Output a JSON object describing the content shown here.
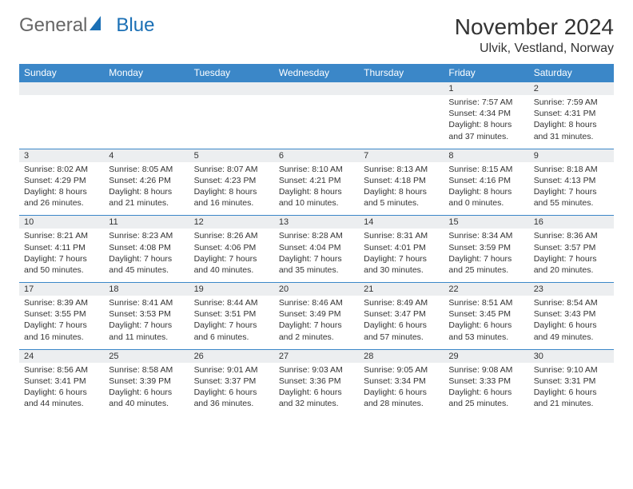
{
  "logo": {
    "text1": "General",
    "text2": "Blue"
  },
  "title": "November 2024",
  "location": "Ulvik, Vestland, Norway",
  "colors": {
    "header_bg": "#3b87c8",
    "header_text": "#ffffff",
    "daynum_bg": "#eceef0",
    "row_border": "#3b87c8",
    "body_text": "#333333",
    "logo_grey": "#666666",
    "logo_blue": "#1a6fb5"
  },
  "weekdays": [
    "Sunday",
    "Monday",
    "Tuesday",
    "Wednesday",
    "Thursday",
    "Friday",
    "Saturday"
  ],
  "weeks": [
    [
      null,
      null,
      null,
      null,
      null,
      {
        "n": "1",
        "sunrise": "Sunrise: 7:57 AM",
        "sunset": "Sunset: 4:34 PM",
        "daylight": "Daylight: 8 hours and 37 minutes."
      },
      {
        "n": "2",
        "sunrise": "Sunrise: 7:59 AM",
        "sunset": "Sunset: 4:31 PM",
        "daylight": "Daylight: 8 hours and 31 minutes."
      }
    ],
    [
      {
        "n": "3",
        "sunrise": "Sunrise: 8:02 AM",
        "sunset": "Sunset: 4:29 PM",
        "daylight": "Daylight: 8 hours and 26 minutes."
      },
      {
        "n": "4",
        "sunrise": "Sunrise: 8:05 AM",
        "sunset": "Sunset: 4:26 PM",
        "daylight": "Daylight: 8 hours and 21 minutes."
      },
      {
        "n": "5",
        "sunrise": "Sunrise: 8:07 AM",
        "sunset": "Sunset: 4:23 PM",
        "daylight": "Daylight: 8 hours and 16 minutes."
      },
      {
        "n": "6",
        "sunrise": "Sunrise: 8:10 AM",
        "sunset": "Sunset: 4:21 PM",
        "daylight": "Daylight: 8 hours and 10 minutes."
      },
      {
        "n": "7",
        "sunrise": "Sunrise: 8:13 AM",
        "sunset": "Sunset: 4:18 PM",
        "daylight": "Daylight: 8 hours and 5 minutes."
      },
      {
        "n": "8",
        "sunrise": "Sunrise: 8:15 AM",
        "sunset": "Sunset: 4:16 PM",
        "daylight": "Daylight: 8 hours and 0 minutes."
      },
      {
        "n": "9",
        "sunrise": "Sunrise: 8:18 AM",
        "sunset": "Sunset: 4:13 PM",
        "daylight": "Daylight: 7 hours and 55 minutes."
      }
    ],
    [
      {
        "n": "10",
        "sunrise": "Sunrise: 8:21 AM",
        "sunset": "Sunset: 4:11 PM",
        "daylight": "Daylight: 7 hours and 50 minutes."
      },
      {
        "n": "11",
        "sunrise": "Sunrise: 8:23 AM",
        "sunset": "Sunset: 4:08 PM",
        "daylight": "Daylight: 7 hours and 45 minutes."
      },
      {
        "n": "12",
        "sunrise": "Sunrise: 8:26 AM",
        "sunset": "Sunset: 4:06 PM",
        "daylight": "Daylight: 7 hours and 40 minutes."
      },
      {
        "n": "13",
        "sunrise": "Sunrise: 8:28 AM",
        "sunset": "Sunset: 4:04 PM",
        "daylight": "Daylight: 7 hours and 35 minutes."
      },
      {
        "n": "14",
        "sunrise": "Sunrise: 8:31 AM",
        "sunset": "Sunset: 4:01 PM",
        "daylight": "Daylight: 7 hours and 30 minutes."
      },
      {
        "n": "15",
        "sunrise": "Sunrise: 8:34 AM",
        "sunset": "Sunset: 3:59 PM",
        "daylight": "Daylight: 7 hours and 25 minutes."
      },
      {
        "n": "16",
        "sunrise": "Sunrise: 8:36 AM",
        "sunset": "Sunset: 3:57 PM",
        "daylight": "Daylight: 7 hours and 20 minutes."
      }
    ],
    [
      {
        "n": "17",
        "sunrise": "Sunrise: 8:39 AM",
        "sunset": "Sunset: 3:55 PM",
        "daylight": "Daylight: 7 hours and 16 minutes."
      },
      {
        "n": "18",
        "sunrise": "Sunrise: 8:41 AM",
        "sunset": "Sunset: 3:53 PM",
        "daylight": "Daylight: 7 hours and 11 minutes."
      },
      {
        "n": "19",
        "sunrise": "Sunrise: 8:44 AM",
        "sunset": "Sunset: 3:51 PM",
        "daylight": "Daylight: 7 hours and 6 minutes."
      },
      {
        "n": "20",
        "sunrise": "Sunrise: 8:46 AM",
        "sunset": "Sunset: 3:49 PM",
        "daylight": "Daylight: 7 hours and 2 minutes."
      },
      {
        "n": "21",
        "sunrise": "Sunrise: 8:49 AM",
        "sunset": "Sunset: 3:47 PM",
        "daylight": "Daylight: 6 hours and 57 minutes."
      },
      {
        "n": "22",
        "sunrise": "Sunrise: 8:51 AM",
        "sunset": "Sunset: 3:45 PM",
        "daylight": "Daylight: 6 hours and 53 minutes."
      },
      {
        "n": "23",
        "sunrise": "Sunrise: 8:54 AM",
        "sunset": "Sunset: 3:43 PM",
        "daylight": "Daylight: 6 hours and 49 minutes."
      }
    ],
    [
      {
        "n": "24",
        "sunrise": "Sunrise: 8:56 AM",
        "sunset": "Sunset: 3:41 PM",
        "daylight": "Daylight: 6 hours and 44 minutes."
      },
      {
        "n": "25",
        "sunrise": "Sunrise: 8:58 AM",
        "sunset": "Sunset: 3:39 PM",
        "daylight": "Daylight: 6 hours and 40 minutes."
      },
      {
        "n": "26",
        "sunrise": "Sunrise: 9:01 AM",
        "sunset": "Sunset: 3:37 PM",
        "daylight": "Daylight: 6 hours and 36 minutes."
      },
      {
        "n": "27",
        "sunrise": "Sunrise: 9:03 AM",
        "sunset": "Sunset: 3:36 PM",
        "daylight": "Daylight: 6 hours and 32 minutes."
      },
      {
        "n": "28",
        "sunrise": "Sunrise: 9:05 AM",
        "sunset": "Sunset: 3:34 PM",
        "daylight": "Daylight: 6 hours and 28 minutes."
      },
      {
        "n": "29",
        "sunrise": "Sunrise: 9:08 AM",
        "sunset": "Sunset: 3:33 PM",
        "daylight": "Daylight: 6 hours and 25 minutes."
      },
      {
        "n": "30",
        "sunrise": "Sunrise: 9:10 AM",
        "sunset": "Sunset: 3:31 PM",
        "daylight": "Daylight: 6 hours and 21 minutes."
      }
    ]
  ]
}
